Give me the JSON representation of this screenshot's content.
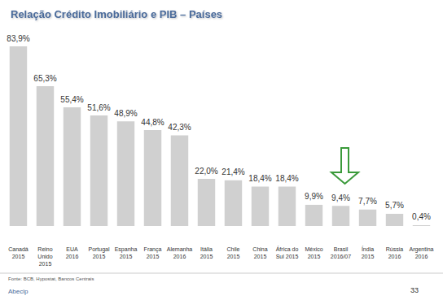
{
  "chart_data": {
    "type": "bar",
    "title": "Relação Crédito Imobiliário e PIB – Países",
    "categories": [
      "Canadá\n2015",
      "Reino\nUnido\n2015",
      "EUA\n2016",
      "Portugal\n2015",
      "Espanha\n2015",
      "França\n2015",
      "Alemanha\n2016",
      "Itália\n2015",
      "Chile\n2015",
      "China\n2015",
      "África do\nSul 2015",
      "México\n2015",
      "Brasil\n2016/07",
      "Índia\n2015",
      "Rússia\n2016",
      "Argentina\n2016"
    ],
    "values": [
      83.9,
      65.3,
      55.4,
      51.6,
      48.9,
      44.8,
      42.3,
      22.0,
      21.4,
      18.4,
      18.4,
      9.9,
      9.4,
      7.7,
      5.7,
      0.4
    ],
    "value_labels": [
      "83,9%",
      "65,3%",
      "55,4%",
      "51,6%",
      "48,9%",
      "44,8%",
      "42,3%",
      "22,0%",
      "21,4%",
      "18,4%",
      "18,4%",
      "9,9%",
      "9,4%",
      "7,7%",
      "5,7%",
      "0,4%"
    ],
    "color": "#d0d0d0",
    "ylim": [
      0,
      90
    ],
    "yticks": [
      0,
      90
    ],
    "grid": false,
    "data_labels": true,
    "tick_labels": "x",
    "source": "Fonte: BCB, Hypostat, Bancos Centrais",
    "footer": "Abecip",
    "page": "33"
  }
}
